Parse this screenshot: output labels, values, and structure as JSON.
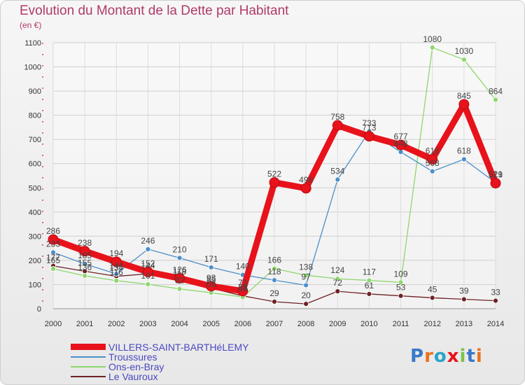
{
  "title": "Evolution du Montant de la Dette par Habitant",
  "unit": "(en €)",
  "logo": "Proxiti",
  "chart_data": {
    "type": "line",
    "x": [
      "2000",
      "2001",
      "2002",
      "2003",
      "2004",
      "2005",
      "2006",
      "2007",
      "2008",
      "2009",
      "2010",
      "2011",
      "2012",
      "2013",
      "2014"
    ],
    "ylim": [
      0,
      1100
    ],
    "yticks": [
      0,
      100,
      200,
      300,
      400,
      500,
      600,
      700,
      800,
      900,
      1000,
      1100
    ],
    "grid": true,
    "legend_position": "bottom-left",
    "series": [
      {
        "name": "VILLERS-SAINT-BARTHéLEMY",
        "color": "#e8121b",
        "values": [
          286,
          238,
          194,
          152,
          126,
          93,
          73,
          522,
          498,
          758,
          713,
          677,
          618,
          845,
          519
        ]
      },
      {
        "name": "Troussures",
        "color": "#4d8fc8",
        "values": [
          233,
          185,
          144,
          246,
          210,
          171,
          140,
          118,
          97,
          534,
          733,
          648,
          568,
          618,
          521
        ]
      },
      {
        "name": "Ons-en-Bray",
        "color": "#8fd66f",
        "values": [
          165,
          136,
          116,
          101,
          82,
          66,
          48,
          166,
          138,
          124,
          117,
          109,
          1080,
          1030,
          864
        ]
      },
      {
        "name": "Le Vauroux",
        "color": "#6e2226",
        "values": [
          177,
          155,
          134,
          144,
          118,
          85,
          53,
          29,
          20,
          72,
          61,
          53,
          45,
          39,
          33
        ]
      }
    ]
  }
}
